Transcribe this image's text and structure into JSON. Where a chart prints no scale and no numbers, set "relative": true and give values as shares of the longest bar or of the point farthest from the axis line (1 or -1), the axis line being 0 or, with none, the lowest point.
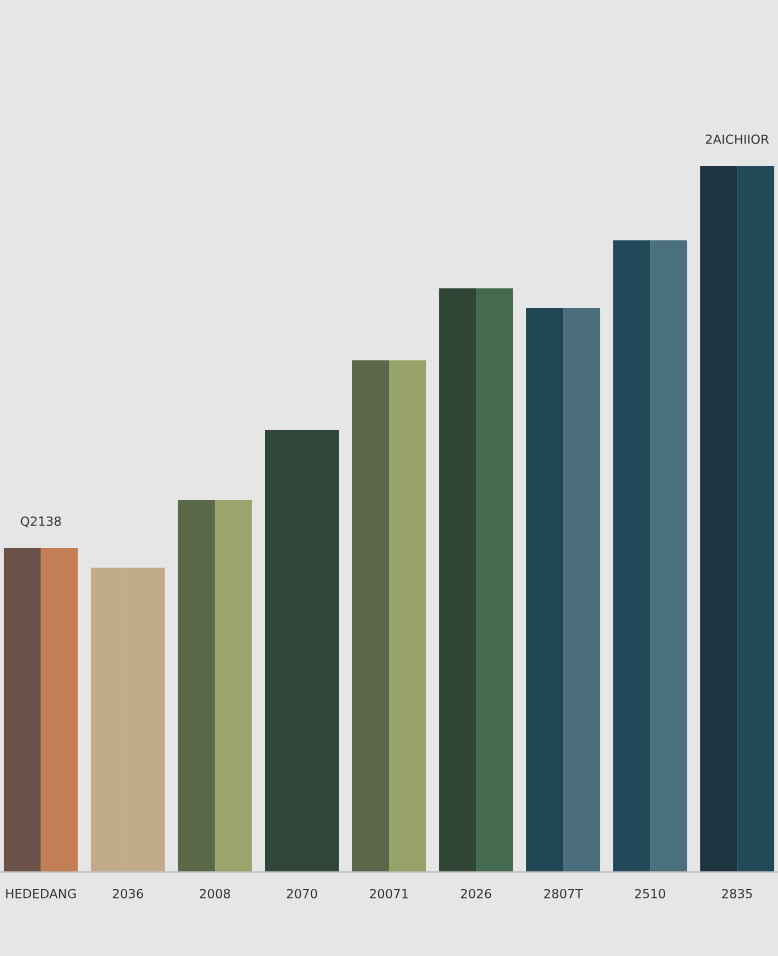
{
  "chart_data": {
    "type": "bar",
    "relative": true,
    "categories": [
      "HEDEDANG",
      "2036",
      "2008",
      "2070",
      "20071",
      "2026",
      "2807T",
      "2510",
      "2835"
    ],
    "series": [
      {
        "values": [
          0.459,
          0.431,
          0.527,
          0.626,
          0.725,
          0.827,
          0.799,
          0.895,
          1
        ],
        "colors": [
          "#6b5248",
          "#c2ab88",
          "#5b6848",
          "#2f4639",
          "#5c6648",
          "#2f4536",
          "#1f4655",
          "#21495a",
          "#1e3440"
        ]
      },
      {
        "values": [
          0.459,
          0.431,
          0.527,
          0.626,
          0.725,
          0.827,
          0.799,
          0.895,
          1
        ],
        "colors": [
          "#c47e56",
          "#c2ab88",
          "#9aa46c",
          "#2f4639",
          "#98a36c",
          "#466a4f",
          "#4a6e7c",
          "#4a6f7d",
          "#234a58"
        ]
      }
    ],
    "annotations": [
      {
        "text": "Q2138",
        "x": "HEDEDANG",
        "y": 0.459
      },
      {
        "text": "2AICHIIOR",
        "x": "2835",
        "y": 1
      }
    ],
    "grid": false,
    "legend": false
  }
}
